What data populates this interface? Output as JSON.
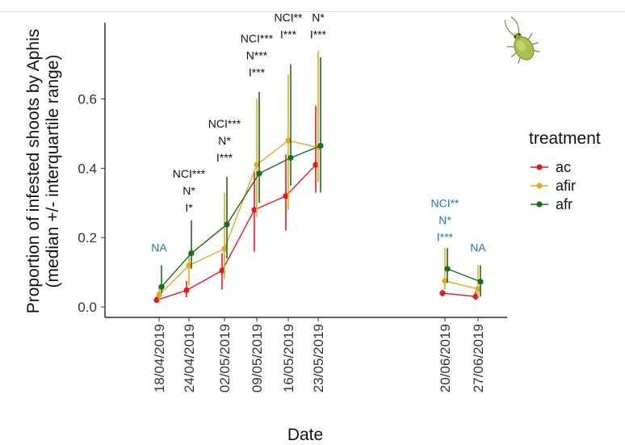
{
  "chart_data": {
    "type": "line",
    "title": "",
    "xlabel": "Date",
    "ylabel": [
      "Proportion of infested shoots by Aphis",
      "(median +/- interquartile range)"
    ],
    "ylim": [
      -0.03,
      0.82
    ],
    "yticks": [
      "0.0",
      "0.2",
      "0.4",
      "0.6"
    ],
    "ytick_values": [
      0.0,
      0.2,
      0.4,
      0.6
    ],
    "categories": [
      "18/04/2019",
      "24/04/2019",
      "02/05/2019",
      "09/05/2019",
      "16/05/2019",
      "23/05/2019",
      "20/06/2019",
      "27/06/2019"
    ],
    "segments": [
      [
        0,
        1,
        2,
        3,
        4,
        5
      ],
      [
        6,
        7
      ]
    ],
    "grid": false,
    "legend": {
      "title": "treatment",
      "placement": "right"
    },
    "series": [
      {
        "name": "ac",
        "color": "#e41a1c",
        "values": [
          0.02,
          0.048,
          0.105,
          0.28,
          0.32,
          0.41,
          0.04,
          0.03
        ],
        "lower": [
          0.012,
          0.028,
          0.05,
          0.16,
          0.22,
          0.33,
          0.03,
          0.02
        ],
        "upper": [
          0.03,
          0.075,
          0.155,
          0.39,
          0.44,
          0.58,
          0.05,
          0.045
        ]
      },
      {
        "name": "afir",
        "color": "#e5a823",
        "values": [
          0.035,
          0.12,
          0.168,
          0.41,
          0.48,
          0.46,
          0.075,
          0.052
        ],
        "lower": [
          0.02,
          0.06,
          0.08,
          0.26,
          0.28,
          0.36,
          0.05,
          0.03
        ],
        "upper": [
          0.06,
          0.16,
          0.33,
          0.6,
          0.67,
          0.74,
          0.17,
          0.12
        ]
      },
      {
        "name": "afr",
        "color": "#1c6b1c",
        "values": [
          0.058,
          0.155,
          0.238,
          0.385,
          0.43,
          0.465,
          0.11,
          0.073
        ],
        "lower": [
          0.04,
          0.11,
          0.14,
          0.3,
          0.35,
          0.33,
          0.07,
          0.03
        ],
        "upper": [
          0.12,
          0.25,
          0.375,
          0.62,
          0.7,
          0.72,
          0.17,
          0.12
        ]
      }
    ],
    "annotations": [
      {
        "category": 0,
        "color": "#1f77b4",
        "lines": [
          "NA"
        ],
        "anchor_y": 0.16
      },
      {
        "category": 1,
        "color": "#111111",
        "lines": [
          "NCI***",
          "N*",
          "I*"
        ],
        "anchor_y": 0.275
      },
      {
        "category": 2,
        "color": "#111111",
        "lines": [
          "NCI***",
          "N*",
          "I***"
        ],
        "anchor_y": 0.42
      },
      {
        "category": 3,
        "color": "#111111",
        "lines": [
          "NCI***",
          "N***",
          "I***"
        ],
        "anchor_y": 0.665
      },
      {
        "category": 4,
        "color": "#111111",
        "lines": [
          "NCI**",
          "I***"
        ],
        "anchor_y": 0.775
      },
      {
        "category": 5,
        "color": "#111111",
        "lines": [
          "N*",
          "I***"
        ],
        "anchor_y": 0.775
      },
      {
        "category": 6,
        "color": "#1f77b4",
        "lines": [
          "NCI**",
          "N*",
          "I***"
        ],
        "anchor_y": 0.19
      },
      {
        "category": 7,
        "color": "#1f77b4",
        "lines": [
          "NA"
        ],
        "anchor_y": 0.16
      }
    ]
  },
  "decor": {
    "insect_icon": "aphis-insect-icon"
  }
}
